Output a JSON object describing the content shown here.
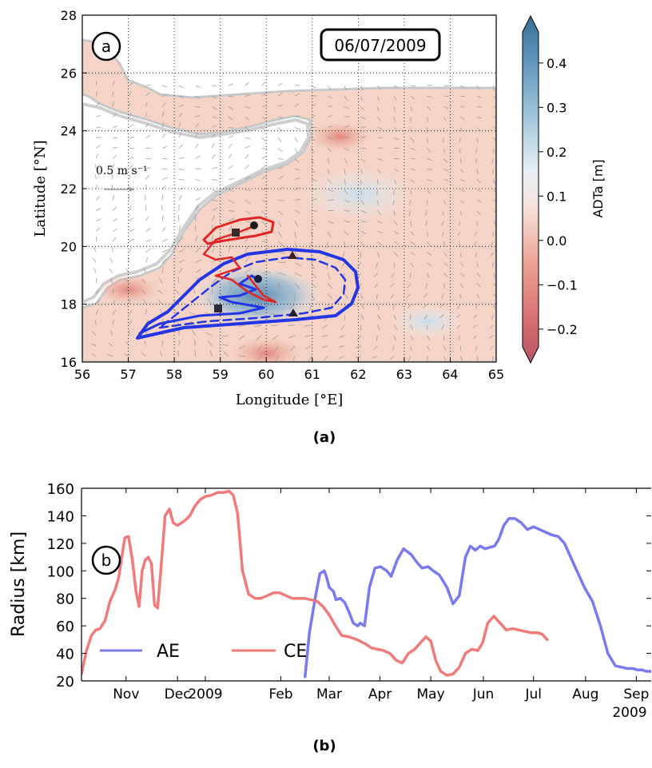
{
  "panel_a": {
    "panel_letter": "a",
    "date_label": "06/07/2009",
    "xlabel": "Longitude [°E]",
    "ylabel": "Latitude [°N]",
    "scale_label": "0.5 m s⁻¹",
    "xticks": [
      "56",
      "57",
      "58",
      "59",
      "60",
      "61",
      "62",
      "63",
      "64",
      "65"
    ],
    "yticks": [
      "16",
      "18",
      "20",
      "22",
      "24",
      "26",
      "28"
    ],
    "colorbar": {
      "label": "ADTa [m]",
      "ticks": [
        "0.4",
        "0.3",
        "0.2",
        "0.1",
        "0.0",
        "−0.1",
        "−0.2"
      ]
    },
    "caption": "(a)"
  },
  "panel_b": {
    "panel_letter": "b",
    "caption": "(b)"
  },
  "chart_data": [
    {
      "type": "heatmap",
      "title": "06/07/2009",
      "xlabel": "Longitude [°E]",
      "ylabel": "Latitude [°N]",
      "xlim": [
        56,
        65
      ],
      "ylim": [
        16,
        28
      ],
      "colorbar_label": "ADTa [m]",
      "colorbar_range": [
        -0.24,
        0.47
      ],
      "grid": true,
      "anticyclone_contour_color": "#2030e0",
      "cyclone_contour_color": "#e02020",
      "anticyclone_center": [
        59.8,
        18.8
      ],
      "cyclone_center": [
        59.7,
        20.7
      ],
      "markers": {
        "squares": [
          [
            59.3,
            20.4
          ],
          [
            58.9,
            17.8
          ]
        ],
        "triangles": [
          [
            60.6,
            19.6
          ],
          [
            60.6,
            17.6
          ]
        ]
      },
      "blobs": [
        {
          "lon": 59.8,
          "lat": 18.3,
          "value": 0.3,
          "radius_deg": 1.4
        },
        {
          "lon": 62.0,
          "lat": 21.8,
          "value": 0.1,
          "radius_deg": 1.2
        },
        {
          "lon": 63.5,
          "lat": 17.4,
          "value": 0.15,
          "radius_deg": 0.8
        },
        {
          "lon": 61.6,
          "lat": 23.8,
          "value": -0.15,
          "radius_deg": 0.7
        },
        {
          "lon": 57.0,
          "lat": 18.5,
          "value": -0.12,
          "radius_deg": 0.7
        },
        {
          "lon": 60.0,
          "lat": 16.3,
          "value": -0.1,
          "radius_deg": 0.8
        }
      ]
    },
    {
      "type": "line",
      "ylabel": "Radius [km]",
      "ylim": [
        20,
        160
      ],
      "yticks": [
        20,
        40,
        60,
        80,
        100,
        120,
        140,
        160
      ],
      "xticks": [
        "Nov",
        "Dec",
        "2009",
        "Feb",
        "Mar",
        "Apr",
        "May",
        "Jun",
        "Jul",
        "Aug",
        "Sep"
      ],
      "xtick_positions": [
        2008.872,
        2008.955,
        2009.0,
        2009.122,
        2009.2,
        2009.282,
        2009.364,
        2009.449,
        2009.53,
        2009.614,
        2009.696
      ],
      "secondary_xlabel": "2009",
      "xlim": [
        2008.8,
        2009.72
      ],
      "legend_position": "lower-left",
      "series": [
        {
          "name": "AE",
          "color": "#7a7aee",
          "x": [
            2009.161,
            2009.168,
            2009.178,
            2009.185,
            2009.192,
            2009.196,
            2009.2,
            2009.207,
            2009.211,
            2009.218,
            2009.225,
            2009.232,
            2009.239,
            2009.246,
            2009.25,
            2009.257,
            2009.265,
            2009.274,
            2009.283,
            2009.293,
            2009.3,
            2009.31,
            2009.32,
            2009.332,
            2009.342,
            2009.35,
            2009.36,
            2009.368,
            2009.378,
            2009.39,
            2009.4,
            2009.41,
            2009.42,
            2009.428,
            2009.436,
            2009.444,
            2009.452,
            2009.459,
            2009.467,
            2009.474,
            2009.482,
            2009.49,
            2009.5,
            2009.51,
            2009.52,
            2009.53,
            2009.54,
            2009.55,
            2009.56,
            2009.57,
            2009.58,
            2009.59,
            2009.6,
            2009.612,
            2009.625,
            2009.638,
            2009.65,
            2009.662,
            2009.672,
            2009.681,
            2009.69,
            2009.698,
            2009.705,
            2009.712,
            2009.72
          ],
          "values": [
            23,
            55,
            82,
            98,
            100,
            95,
            88,
            85,
            79,
            80,
            77,
            70,
            62,
            60,
            62,
            60,
            88,
            102,
            103,
            100,
            96,
            108,
            116,
            112,
            106,
            102,
            103,
            100,
            97,
            88,
            76,
            82,
            110,
            118,
            115,
            118,
            116,
            117,
            118,
            123,
            133,
            138,
            138,
            135,
            130,
            132,
            130,
            128,
            126,
            125,
            120,
            110,
            100,
            88,
            78,
            60,
            40,
            31,
            30,
            29,
            29,
            28,
            28,
            27,
            27
          ]
        },
        {
          "name": "CE",
          "color": "#ef7b7b",
          "x": [
            2008.8,
            2008.808,
            2008.816,
            2008.823,
            2008.83,
            2008.838,
            2008.846,
            2008.854,
            2008.86,
            2008.865,
            2008.87,
            2008.876,
            2008.882,
            2008.888,
            2008.893,
            2008.898,
            2008.903,
            2008.908,
            2008.913,
            2008.918,
            2008.923,
            2008.928,
            2008.935,
            2008.942,
            2008.948,
            2008.955,
            2008.962,
            2008.968,
            2008.975,
            2008.983,
            2008.992,
            2009.0,
            2009.01,
            2009.02,
            2009.03,
            2009.038,
            2009.045,
            2009.052,
            2009.06,
            2009.07,
            2009.08,
            2009.09,
            2009.1,
            2009.11,
            2009.12,
            2009.13,
            2009.14,
            2009.15,
            2009.16,
            2009.17,
            2009.18,
            2009.19,
            2009.2,
            2009.21,
            2009.22,
            2009.232,
            2009.245,
            2009.258,
            2009.268,
            2009.278,
            2009.288,
            2009.298,
            2009.308,
            2009.318,
            2009.328,
            2009.338,
            2009.348,
            2009.356,
            2009.364,
            2009.372,
            2009.38,
            2009.39,
            2009.4,
            2009.41,
            2009.42,
            2009.43,
            2009.44,
            2009.448,
            2009.456,
            2009.466,
            2009.476,
            2009.486,
            2009.496,
            2009.506,
            2009.516,
            2009.526,
            2009.536,
            2009.544,
            2009.552
          ],
          "values": [
            25,
            42,
            53,
            57,
            58,
            64,
            78,
            86,
            95,
            110,
            124,
            125,
            108,
            85,
            74,
            100,
            108,
            110,
            105,
            75,
            73,
            100,
            140,
            145,
            135,
            133,
            135,
            137,
            140,
            147,
            152,
            154,
            155,
            157,
            157,
            158,
            155,
            142,
            100,
            83,
            80,
            80,
            82,
            84,
            84,
            82,
            80,
            80,
            80,
            79,
            78,
            74,
            68,
            60,
            53,
            52,
            50,
            47,
            44,
            43,
            42,
            40,
            35,
            33,
            40,
            43,
            48,
            52,
            49,
            35,
            27,
            24,
            25,
            30,
            40,
            43,
            42,
            48,
            62,
            67,
            62,
            57,
            58,
            57,
            56,
            55,
            55,
            54,
            50
          ]
        }
      ]
    }
  ]
}
